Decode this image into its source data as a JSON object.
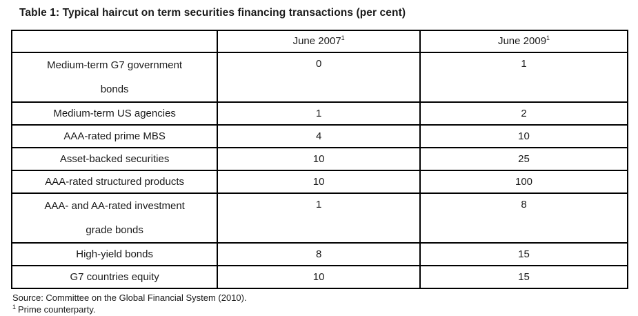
{
  "title": "Table 1: Typical haircut on term securities financing transactions (per cent)",
  "columns": [
    {
      "label": "",
      "sup": ""
    },
    {
      "label": "June 2007",
      "sup": "1"
    },
    {
      "label": "June 2009",
      "sup": "1"
    }
  ],
  "rows": [
    {
      "label_lines": [
        "Medium-term G7 government",
        "bonds"
      ],
      "values": [
        "0",
        "1"
      ]
    },
    {
      "label_lines": [
        "Medium-term US agencies"
      ],
      "values": [
        "1",
        "2"
      ]
    },
    {
      "label_lines": [
        "AAA-rated prime MBS"
      ],
      "values": [
        "4",
        "10"
      ]
    },
    {
      "label_lines": [
        "Asset-backed securities"
      ],
      "values": [
        "10",
        "25"
      ]
    },
    {
      "label_lines": [
        "AAA-rated structured products"
      ],
      "values": [
        "10",
        "100"
      ]
    },
    {
      "label_lines": [
        "AAA- and AA-rated investment",
        "grade bonds"
      ],
      "values": [
        "1",
        "8"
      ]
    },
    {
      "label_lines": [
        "High-yield bonds"
      ],
      "values": [
        "8",
        "15"
      ]
    },
    {
      "label_lines": [
        "G7 countries equity"
      ],
      "values": [
        "10",
        "15"
      ]
    }
  ],
  "source": "Source: Committee on the Global Financial System (2010).",
  "footnote": {
    "sup": "1",
    "text": "Prime counterparty."
  },
  "colors": {
    "border": "#000000",
    "text": "#1a1a1a",
    "background": "#ffffff"
  }
}
